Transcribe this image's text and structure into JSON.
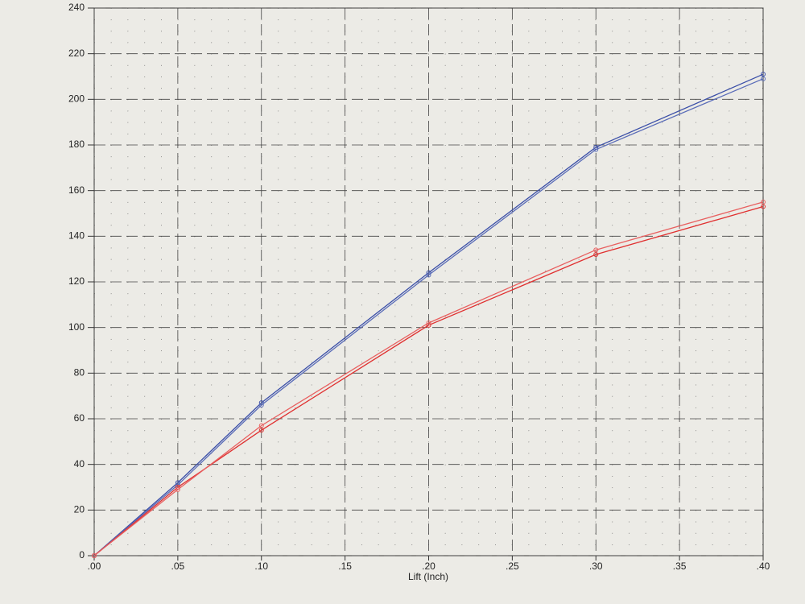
{
  "chart_data": {
    "type": "line",
    "x_label": "Lift (Inch)",
    "x": [
      0,
      0.05,
      0.1,
      0.2,
      0.3,
      0.4
    ],
    "series": [
      {
        "color": "#3b4fa8",
        "values": [
          0,
          32,
          67,
          124,
          179,
          211
        ]
      },
      {
        "color": "#5a6cb8",
        "values": [
          0,
          31,
          66,
          123,
          178,
          209
        ]
      },
      {
        "color": "#e03030",
        "values": [
          0,
          30,
          55,
          101,
          132,
          153
        ]
      },
      {
        "color": "#e86060",
        "values": [
          0,
          29,
          57,
          102,
          134,
          155
        ]
      }
    ],
    "xlim": [
      0,
      0.4
    ],
    "ylim": [
      0,
      240
    ],
    "xticks": [
      {
        "value": 0,
        "label": ".00"
      },
      {
        "value": 0.05,
        "label": ".05"
      },
      {
        "value": 0.1,
        "label": ".10"
      },
      {
        "value": 0.15,
        "label": ".15"
      },
      {
        "value": 0.2,
        "label": ".20"
      },
      {
        "value": 0.25,
        "label": ".25"
      },
      {
        "value": 0.3,
        "label": ".30"
      },
      {
        "value": 0.35,
        "label": ".35"
      },
      {
        "value": 0.4,
        "label": ".40"
      }
    ],
    "yticks": [
      0,
      20,
      40,
      60,
      80,
      100,
      120,
      140,
      160,
      180,
      200,
      220,
      240
    ],
    "grid": true
  }
}
